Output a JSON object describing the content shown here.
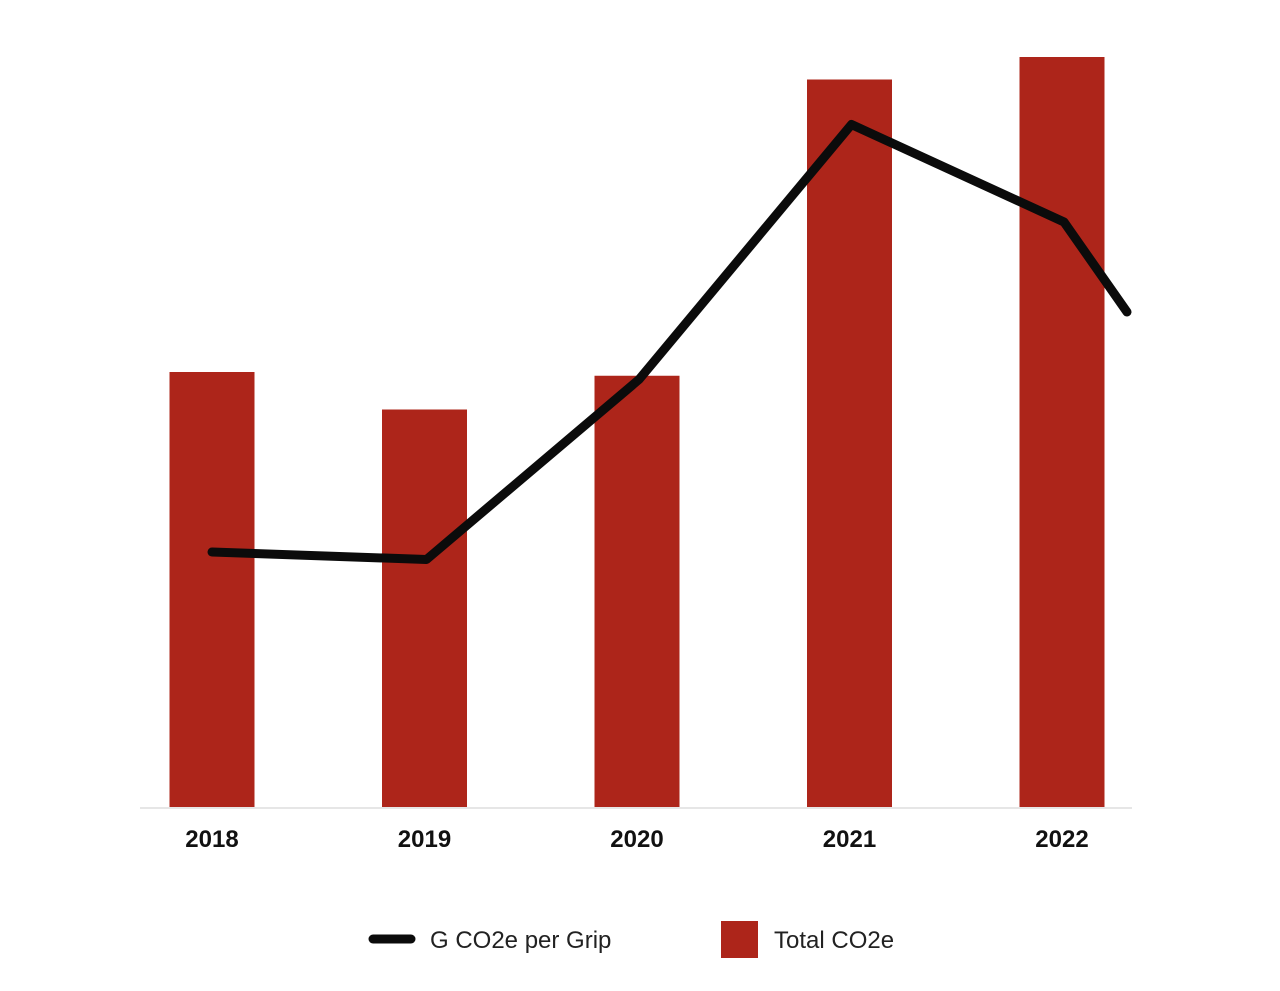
{
  "chart_data": {
    "type": "bar",
    "categories": [
      "2018",
      "2019",
      "2020",
      "2021",
      "2022"
    ],
    "series": [
      {
        "name": "Total CO2e",
        "kind": "bar",
        "color": "#ad251a",
        "values": [
          58,
          53,
          57.5,
          97,
          100
        ]
      },
      {
        "name": "G CO2e per Grip",
        "kind": "line",
        "color": "#0b0b0b",
        "values": [
          34,
          33,
          57,
          91,
          78
        ],
        "trailing_value": 66
      }
    ],
    "ylim": [
      0,
      100
    ],
    "title": "",
    "xlabel": "",
    "ylabel": "",
    "grid": false,
    "legend": {
      "position": "bottom-center",
      "entries": [
        {
          "label": "G CO2e per Grip",
          "marker": "line",
          "color": "#0b0b0b"
        },
        {
          "label": "Total CO2e",
          "marker": "square",
          "color": "#ad251a"
        }
      ]
    },
    "baseline_color": "#e6e6e6"
  }
}
